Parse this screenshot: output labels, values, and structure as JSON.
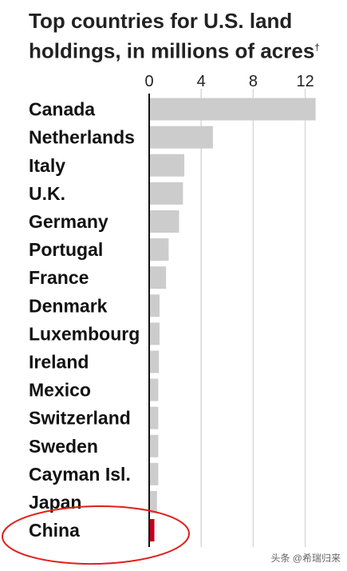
{
  "chart_data": {
    "type": "bar",
    "orientation": "horizontal",
    "title": "Top countries for U.S. land holdings, in millions of acres",
    "title_mark": "†",
    "categories": [
      "Canada",
      "Netherlands",
      "Italy",
      "U.K.",
      "Germany",
      "Portugal",
      "France",
      "Denmark",
      "Luxembourg",
      "Ireland",
      "Mexico",
      "Switzerland",
      "Sweden",
      "Cayman Isl.",
      "Japan",
      "China"
    ],
    "values": [
      12.8,
      4.9,
      2.7,
      2.6,
      2.3,
      1.5,
      1.3,
      0.8,
      0.8,
      0.75,
      0.7,
      0.7,
      0.7,
      0.7,
      0.6,
      0.4
    ],
    "xlim": [
      0,
      13
    ],
    "xticks": [
      0,
      4,
      8,
      12
    ],
    "grid": true,
    "bar_color": "#cccccc",
    "highlight_category": "China",
    "highlight_color": "#c0001c",
    "annotation_color": "#e0201c"
  },
  "watermark": "头条 @希瑞归来"
}
